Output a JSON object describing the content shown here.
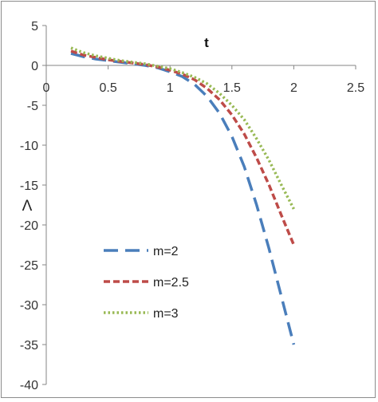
{
  "chart_data": {
    "type": "line",
    "title": "",
    "xlabel": "t",
    "ylabel": "Λ",
    "xlim": [
      0,
      2.5
    ],
    "ylim": [
      -40,
      5
    ],
    "x_ticks": [
      "0",
      "0.5",
      "1",
      "1.5",
      "2",
      "2.5"
    ],
    "y_ticks": [
      "5",
      "0",
      "-5",
      "-10",
      "-15",
      "-20",
      "-25",
      "-30",
      "-35",
      "-40"
    ],
    "grid": false,
    "legend_position": "left-middle",
    "series": [
      {
        "name": "m=2",
        "color": "#4a7ebb",
        "dash": "long-dash",
        "x": [
          0.2,
          0.3,
          0.4,
          0.5,
          0.6,
          0.7,
          0.8,
          0.9,
          1.0,
          1.1,
          1.2,
          1.3,
          1.4,
          1.5,
          1.6,
          1.7,
          1.8,
          1.9,
          2.0
        ],
        "y": [
          1.5,
          1.1,
          0.8,
          0.6,
          0.4,
          0.2,
          0.0,
          -0.3,
          -0.8,
          -1.4,
          -2.4,
          -3.9,
          -6.0,
          -8.9,
          -12.7,
          -17.5,
          -23.0,
          -29.0,
          -35.0
        ]
      },
      {
        "name": "m=2.5",
        "color": "#be4b48",
        "dash": "short-dash",
        "x": [
          0.2,
          0.3,
          0.4,
          0.5,
          0.6,
          0.7,
          0.8,
          0.9,
          1.0,
          1.1,
          1.2,
          1.3,
          1.4,
          1.5,
          1.6,
          1.7,
          1.8,
          1.9,
          2.0
        ],
        "y": [
          1.8,
          1.3,
          1.0,
          0.7,
          0.5,
          0.3,
          0.1,
          -0.2,
          -0.6,
          -1.1,
          -1.8,
          -2.9,
          -4.3,
          -6.2,
          -8.6,
          -11.6,
          -15.0,
          -18.8,
          -22.5
        ]
      },
      {
        "name": "m=3",
        "color": "#98b954",
        "dash": "dot",
        "x": [
          0.2,
          0.3,
          0.4,
          0.5,
          0.6,
          0.7,
          0.8,
          0.9,
          1.0,
          1.1,
          1.2,
          1.3,
          1.4,
          1.5,
          1.6,
          1.7,
          1.8,
          1.9,
          2.0
        ],
        "y": [
          2.2,
          1.6,
          1.2,
          0.9,
          0.6,
          0.4,
          0.2,
          -0.1,
          -0.4,
          -0.9,
          -1.5,
          -2.3,
          -3.5,
          -5.0,
          -6.8,
          -9.2,
          -11.9,
          -15.0,
          -18.0
        ]
      }
    ]
  }
}
